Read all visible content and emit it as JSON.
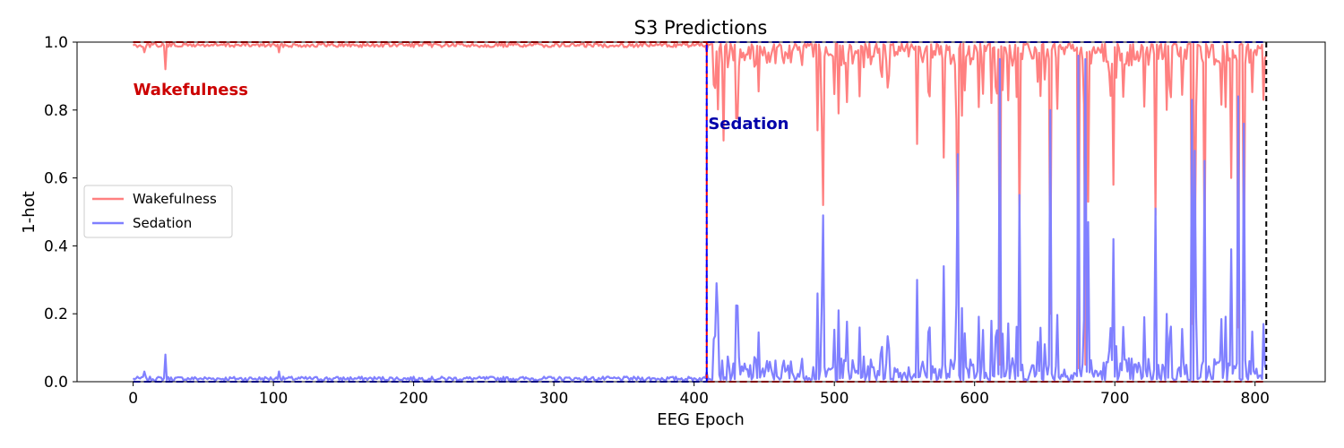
{
  "chart_data": {
    "type": "line",
    "title": "S3 Predictions",
    "xlabel": "EEG Epoch",
    "ylabel": "1-hot",
    "xlim": [
      -40,
      850
    ],
    "ylim": [
      0,
      1.0
    ],
    "xticks": [
      0,
      100,
      200,
      300,
      400,
      500,
      600,
      700,
      800
    ],
    "yticks": [
      0.0,
      0.2,
      0.4,
      0.6,
      0.8,
      1.0
    ],
    "xtick_labels": [
      "0",
      "100",
      "200",
      "300",
      "400",
      "500",
      "600",
      "700",
      "800"
    ],
    "ytick_labels": [
      "0.0",
      "0.2",
      "0.4",
      "0.6",
      "0.8",
      "1.0"
    ],
    "n_epochs": 809,
    "legend": {
      "position": "center-left"
    },
    "series": [
      {
        "name": "Wakefulness",
        "color": "#ff8080",
        "description_points": {
          "baseline_section": [
            0,
            409,
            0.99
          ],
          "dips": [
            [
              23,
              0.92
            ],
            [
              8,
              0.97
            ],
            [
              104,
              0.97
            ],
            [
              421,
              0.71
            ],
            [
              488,
              0.74
            ],
            [
              492,
              0.52
            ],
            [
              503,
              0.79
            ],
            [
              559,
              0.7
            ],
            [
              578,
              0.66
            ],
            [
              588,
              0.33
            ],
            [
              618,
              0.05
            ],
            [
              632,
              0.45
            ],
            [
              654,
              0.2
            ],
            [
              674,
              0.04
            ],
            [
              679,
              0.05
            ],
            [
              681,
              0.53
            ],
            [
              699,
              0.58
            ],
            [
              729,
              0.49
            ],
            [
              755,
              0.17
            ],
            [
              757,
              0.32
            ],
            [
              764,
              0.35
            ],
            [
              783,
              0.6
            ],
            [
              788,
              0.16
            ],
            [
              792,
              0.24
            ],
            [
              806,
              0.83
            ]
          ]
        }
      },
      {
        "name": "Sedation",
        "color": "#8080ff",
        "description_points": {
          "baseline_section": [
            0,
            409,
            0.01
          ],
          "peaks": [
            [
              23,
              0.08
            ],
            [
              8,
              0.03
            ],
            [
              104,
              0.03
            ],
            [
              416,
              0.29
            ],
            [
              488,
              0.26
            ],
            [
              492,
              0.49
            ],
            [
              503,
              0.21
            ],
            [
              559,
              0.3
            ],
            [
              578,
              0.34
            ],
            [
              588,
              0.67
            ],
            [
              618,
              0.95
            ],
            [
              632,
              0.55
            ],
            [
              654,
              0.8
            ],
            [
              674,
              0.96
            ],
            [
              679,
              0.95
            ],
            [
              681,
              0.47
            ],
            [
              699,
              0.42
            ],
            [
              729,
              0.51
            ],
            [
              755,
              0.83
            ],
            [
              757,
              0.68
            ],
            [
              764,
              0.65
            ],
            [
              783,
              0.39
            ],
            [
              788,
              0.84
            ],
            [
              792,
              0.76
            ],
            [
              806,
              0.17
            ]
          ]
        }
      }
    ],
    "ground_truth_lines": {
      "wake_color": "#ff0000",
      "sed_color": "#0000ff",
      "transition_epoch": 409,
      "end_epoch": 808
    },
    "annotations": [
      {
        "text": "Wakefulness",
        "x": 0,
        "y": 0.86,
        "color": "#cc0000"
      },
      {
        "text": "Sedation",
        "x": 410,
        "y": 0.76,
        "color": "#0000aa"
      }
    ]
  }
}
